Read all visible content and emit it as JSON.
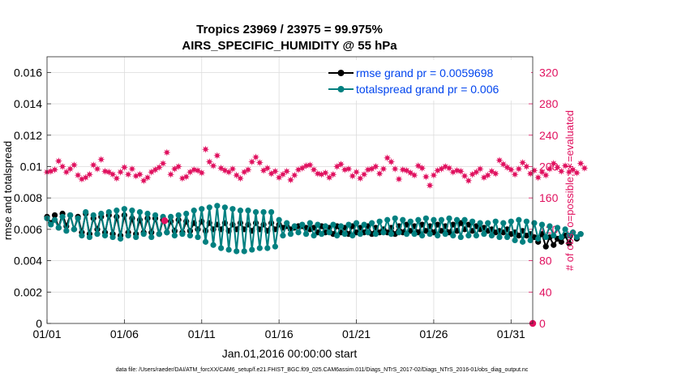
{
  "chart_data": {
    "type": "line",
    "title_line1": "Tropics 23969 / 23975 = 99.975%",
    "title_line2": "AIRS_SPECIFIC_HUMIDITY @ 55 hPa",
    "xlabel": "Jan.01,2016 00:00:00 start",
    "ylabel_left": "rmse and totalspread",
    "ylabel_right": "# of obs: o=possible; ∗=evaluated",
    "footer": "data file: /Users/raeder/DAI/ATM_forcXX/CAM6_setup/f.e21.FHIST_BGC.f09_025.CAM6assim.011/Diags_NTrS_2017-02/Diags_NTrS_2016-01/obs_diag_output.nc",
    "x_ticks": [
      "01/01",
      "01/06",
      "01/11",
      "01/16",
      "01/21",
      "01/26",
      "01/31"
    ],
    "x_tick_days": [
      0,
      5,
      10,
      15,
      20,
      25,
      30
    ],
    "xlim": [
      0,
      31.4
    ],
    "y_left_ticks": [
      "0",
      "0.002",
      "0.004",
      "0.006",
      "0.008",
      "0.01",
      "0.012",
      "0.014",
      "0.016"
    ],
    "y_left_lim": [
      0,
      0.017
    ],
    "y_right_ticks": [
      "0",
      "40",
      "80",
      "120",
      "160",
      "200",
      "240",
      "280",
      "320"
    ],
    "y_right_lim": [
      0,
      340
    ],
    "colors": {
      "rmse": "#000000",
      "spread": "#008080",
      "obs": "#e0115f",
      "legend_text": "#0044ee"
    },
    "series": [
      {
        "name": "rmse grand pr = 0.0059698",
        "axis": "left",
        "x_start": 0,
        "x_step": 0.25,
        "values": [
          0.0068,
          0.0064,
          0.0069,
          0.0061,
          0.007,
          0.0062,
          0.0069,
          0.006,
          0.0068,
          0.0058,
          0.007,
          0.0057,
          0.0067,
          0.006,
          0.0068,
          0.0058,
          0.0069,
          0.0057,
          0.0068,
          0.0056,
          0.0069,
          0.0058,
          0.0067,
          0.0057,
          0.0066,
          0.0058,
          0.0067,
          0.0058,
          0.0067,
          0.0057,
          0.0066,
          0.0058,
          0.0065,
          0.0059,
          0.0066,
          0.0058,
          0.0065,
          0.0059,
          0.0064,
          0.006,
          0.0065,
          0.0059,
          0.0064,
          0.006,
          0.0063,
          0.006,
          0.0064,
          0.0059,
          0.0063,
          0.006,
          0.0064,
          0.006,
          0.0063,
          0.0059,
          0.0064,
          0.006,
          0.0063,
          0.0059,
          0.0064,
          0.006,
          0.0063,
          0.0061,
          0.0062,
          0.006,
          0.0061,
          0.0062,
          0.0062,
          0.0061,
          0.006,
          0.0061,
          0.0058,
          0.0062,
          0.0058,
          0.0061,
          0.0057,
          0.0062,
          0.0058,
          0.0061,
          0.0057,
          0.0062,
          0.0058,
          0.0061,
          0.0058,
          0.0062,
          0.0057,
          0.0061,
          0.0058,
          0.006,
          0.0058,
          0.0061,
          0.0057,
          0.0062,
          0.0058,
          0.0063,
          0.0059,
          0.0062,
          0.0058,
          0.0063,
          0.0059,
          0.0062,
          0.0058,
          0.0063,
          0.0059,
          0.0062,
          0.0058,
          0.0063,
          0.0059,
          0.0064,
          0.006,
          0.0063,
          0.0059,
          0.0062,
          0.006,
          0.0061,
          0.0059,
          0.006,
          0.0058,
          0.0059,
          0.0058,
          0.006,
          0.0057,
          0.0058,
          0.0056,
          0.0059,
          0.0056,
          0.0057,
          0.0055,
          0.0052,
          0.0057,
          0.0049,
          0.0055,
          0.005,
          0.0054,
          0.0052,
          0.0056,
          0.0051,
          0.0058,
          0.0054,
          0.0057
        ]
      },
      {
        "name": "totalspread grand pr = 0.006",
        "axis": "left",
        "x_start": 0,
        "x_step": 0.25,
        "values": [
          0.0067,
          0.0063,
          0.0066,
          0.0061,
          0.0068,
          0.0059,
          0.0069,
          0.006,
          0.0067,
          0.0056,
          0.0071,
          0.0055,
          0.0069,
          0.0057,
          0.007,
          0.0056,
          0.0071,
          0.0055,
          0.0072,
          0.0054,
          0.0073,
          0.0056,
          0.0072,
          0.0055,
          0.0071,
          0.0057,
          0.007,
          0.0055,
          0.0069,
          0.0057,
          0.0068,
          0.0058,
          0.0068,
          0.0056,
          0.0069,
          0.0057,
          0.007,
          0.0056,
          0.0072,
          0.0055,
          0.0073,
          0.0052,
          0.0074,
          0.005,
          0.0075,
          0.0048,
          0.0074,
          0.0047,
          0.0073,
          0.0046,
          0.0072,
          0.0046,
          0.0072,
          0.0047,
          0.0071,
          0.0048,
          0.0071,
          0.0048,
          0.0071,
          0.0049,
          0.0066,
          0.0056,
          0.0064,
          0.0057,
          0.0062,
          0.0058,
          0.0063,
          0.0057,
          0.0064,
          0.0056,
          0.0063,
          0.0057,
          0.0062,
          0.0058,
          0.0063,
          0.0056,
          0.0062,
          0.0057,
          0.0063,
          0.0056,
          0.0064,
          0.0057,
          0.0063,
          0.0058,
          0.0064,
          0.0057,
          0.0065,
          0.0058,
          0.0066,
          0.0057,
          0.0067,
          0.0058,
          0.0066,
          0.0057,
          0.0065,
          0.0057,
          0.0066,
          0.0056,
          0.0067,
          0.0057,
          0.0066,
          0.0056,
          0.0066,
          0.0057,
          0.0067,
          0.0056,
          0.0066,
          0.0055,
          0.0066,
          0.0056,
          0.0065,
          0.0056,
          0.0064,
          0.0057,
          0.0064,
          0.0056,
          0.0065,
          0.0055,
          0.0064,
          0.0055,
          0.0065,
          0.0053,
          0.0066,
          0.0052,
          0.0065,
          0.0053,
          0.0064,
          0.0054,
          0.0063,
          0.0055,
          0.0062,
          0.0056,
          0.0061,
          0.0055,
          0.006,
          0.0056,
          0.0058,
          0.0055,
          0.0057
        ]
      },
      {
        "name": "# of obs evaluated",
        "axis": "right",
        "x_start": 0,
        "x_step": 0.25,
        "values": [
          193,
          194,
          196,
          207,
          200,
          193,
          197,
          202,
          189,
          184,
          186,
          190,
          202,
          197,
          209,
          194,
          193,
          190,
          185,
          193,
          199,
          190,
          197,
          188,
          190,
          182,
          186,
          193,
          196,
          199,
          204,
          218,
          190,
          197,
          200,
          185,
          187,
          193,
          196,
          195,
          192,
          222,
          206,
          201,
          214,
          198,
          195,
          193,
          197,
          189,
          185,
          193,
          196,
          206,
          212,
          205,
          195,
          198,
          191,
          194,
          186,
          190,
          194,
          183,
          189,
          196,
          198,
          201,
          202,
          196,
          191,
          190,
          192,
          186,
          190,
          200,
          203,
          196,
          197,
          188,
          193,
          185,
          190,
          196,
          197,
          200,
          191,
          197,
          211,
          206,
          197,
          184,
          196,
          195,
          192,
          189,
          201,
          198,
          187,
          176,
          189,
          195,
          197,
          200,
          198,
          193,
          195,
          194,
          188,
          182,
          190,
          193,
          197,
          186,
          189,
          194,
          191,
          208,
          203,
          199,
          196,
          190,
          197,
          205,
          200,
          191,
          195,
          186,
          193,
          189,
          197,
          204,
          199,
          194,
          201,
          193,
          196,
          192,
          204,
          198
        ]
      },
      {
        "name": "# of obs possible",
        "axis": "right",
        "x_start": 0,
        "x_step": 0.25,
        "values": [
          193,
          194,
          196,
          207,
          200,
          193,
          197,
          202,
          189,
          184,
          186,
          190,
          202,
          197,
          209,
          194,
          193,
          190,
          185,
          193,
          199,
          190,
          197,
          188,
          190,
          182,
          186,
          193,
          196,
          199,
          204,
          218,
          190,
          197,
          200,
          185,
          187,
          193,
          196,
          195,
          192,
          222,
          206,
          201,
          214,
          198,
          195,
          193,
          197,
          189,
          185,
          193,
          196,
          206,
          212,
          205,
          195,
          198,
          191,
          194,
          186,
          190,
          194,
          183,
          189,
          196,
          198,
          201,
          202,
          196,
          191,
          190,
          192,
          186,
          190,
          200,
          203,
          196,
          197,
          188,
          193,
          185,
          190,
          196,
          197,
          200,
          191,
          197,
          211,
          206,
          197,
          184,
          196,
          195,
          192,
          189,
          201,
          198,
          187,
          176,
          189,
          195,
          197,
          200,
          198,
          193,
          195,
          194,
          188,
          182,
          190,
          193,
          197,
          186,
          189,
          194,
          191,
          208,
          203,
          199,
          196,
          190,
          197,
          205,
          200,
          191,
          195,
          186,
          193,
          189,
          197,
          204,
          199,
          194,
          201,
          193,
          196,
          192,
          204,
          198
        ]
      }
    ],
    "extra_markers": [
      {
        "name": "obs-marker-offscale",
        "axis": "right",
        "x": 7.6,
        "y": 131
      },
      {
        "name": "obs-marker-zero",
        "axis": "right",
        "x": 31.4,
        "y": 0
      }
    ]
  }
}
